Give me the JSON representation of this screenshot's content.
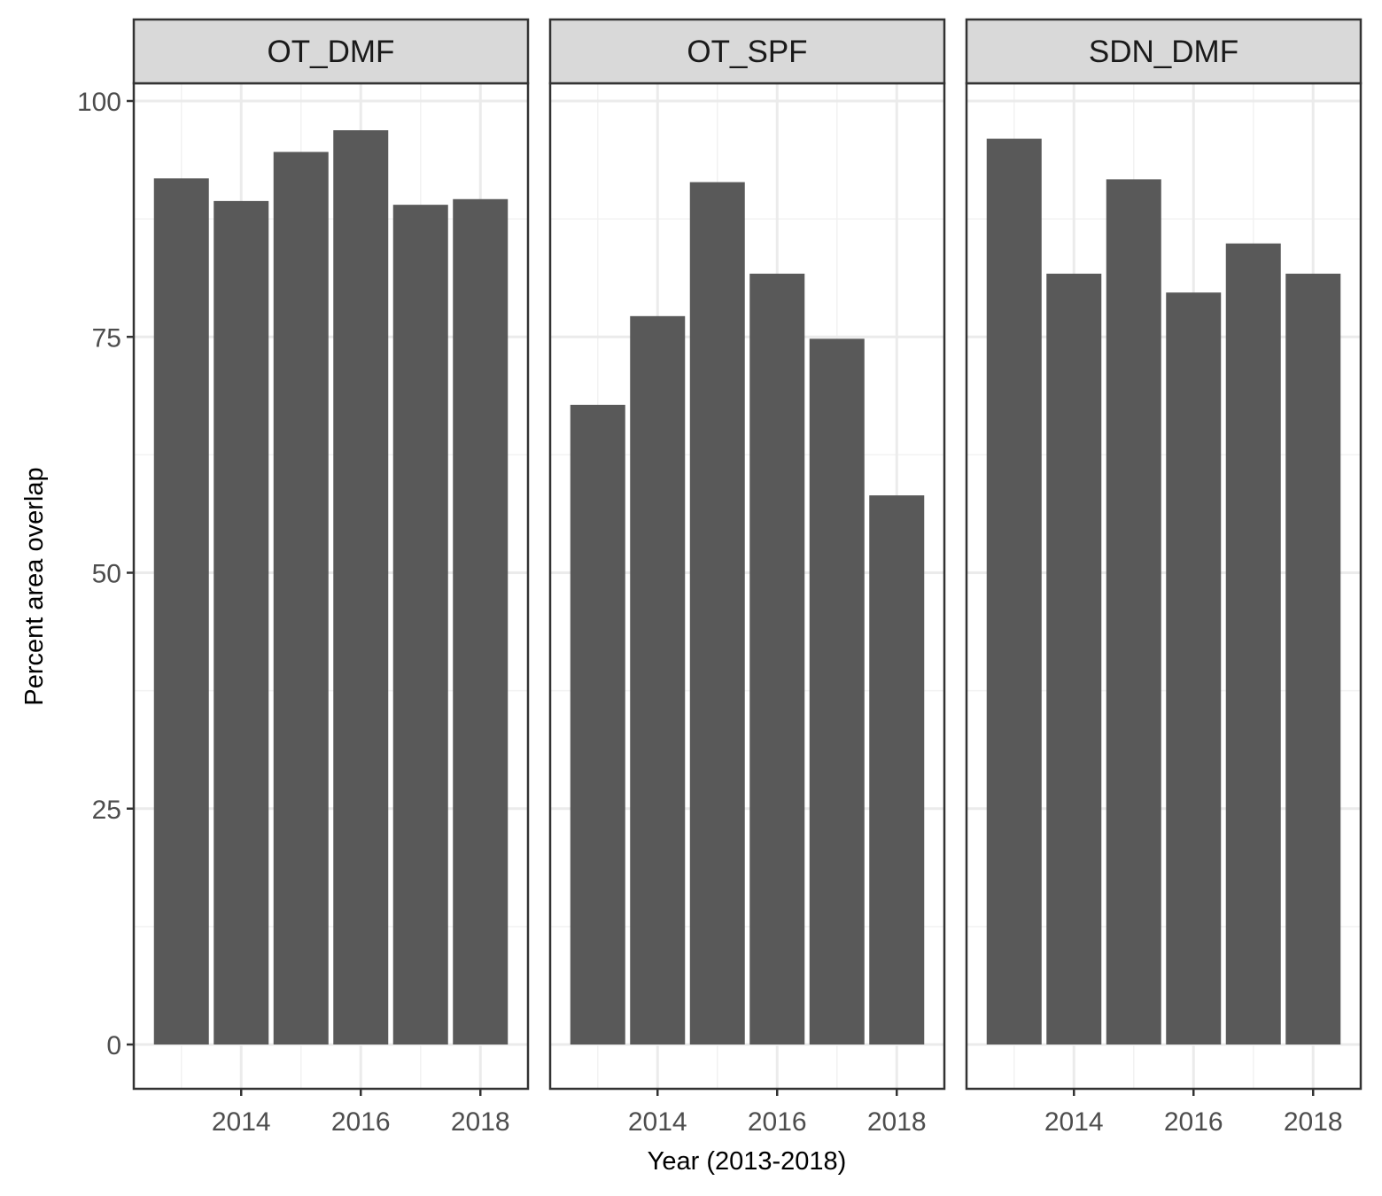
{
  "chart_data": {
    "type": "bar",
    "facet_by": "fishing gear",
    "xlabel": "Year (2013-2018)",
    "ylabel": "Percent area overlap",
    "x_ticks": [
      2014,
      2016,
      2018
    ],
    "y_ticks": [
      0,
      25,
      50,
      75,
      100
    ],
    "xlim": [
      2012.5,
      2018.5
    ],
    "ylim": [
      0,
      100
    ],
    "grid": true,
    "bar_color": "#595959",
    "categories": [
      2013,
      2014,
      2015,
      2016,
      2017,
      2018
    ],
    "panels": [
      {
        "name": "OT_DMF",
        "values": [
          91.8,
          89.4,
          94.6,
          96.9,
          89.0,
          89.6
        ]
      },
      {
        "name": "OT_SPF",
        "values": [
          67.8,
          77.2,
          91.4,
          81.7,
          74.8,
          58.2
        ]
      },
      {
        "name": "SDN_DMF",
        "values": [
          96.0,
          81.7,
          91.7,
          79.7,
          84.9,
          81.7
        ]
      }
    ]
  }
}
